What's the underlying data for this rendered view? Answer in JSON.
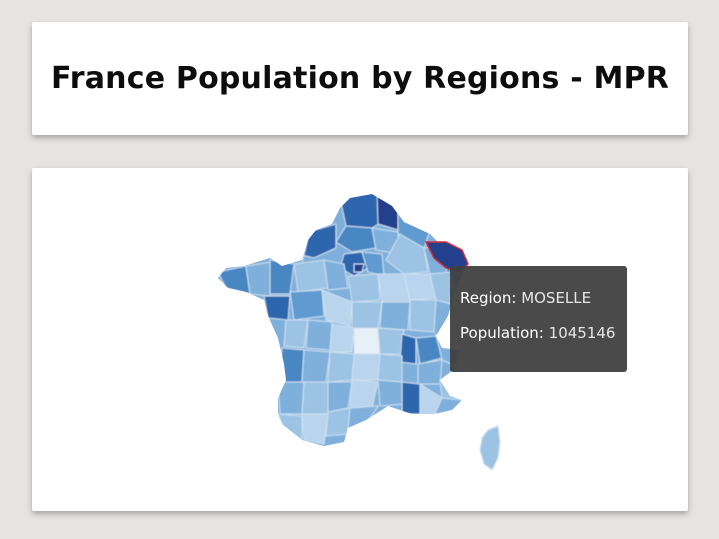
{
  "header": {
    "title": "France Population by Regions - MPR"
  },
  "tooltip": {
    "region_label": "Region:",
    "region_value": "MOSELLE",
    "population_label": "Population:",
    "population_value": "1045146"
  },
  "map": {
    "highlighted_region": "MOSELLE",
    "highlight_color": "#d62c3a",
    "palette": [
      "#b9d4ec",
      "#9cc3e4",
      "#7fb0db",
      "#5f9bd0",
      "#4a87c3",
      "#2f66ad",
      "#243f8c"
    ],
    "border_color": "#cfe0f0"
  }
}
